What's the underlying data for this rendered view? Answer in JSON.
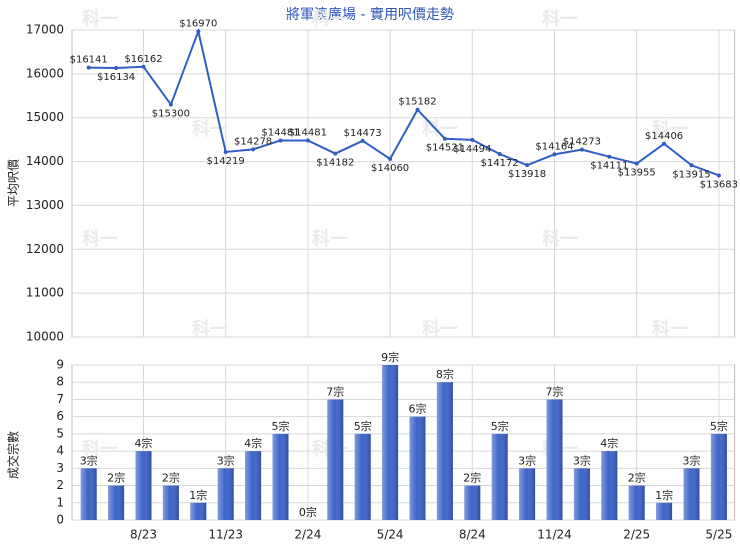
{
  "chart_data": [
    {
      "type": "line",
      "title": "將軍澳廣場 - 實用呎價走勢",
      "ylabel": "平均呎價",
      "watermark": "科一",
      "values": [
        16141,
        16134,
        16162,
        15300,
        16970,
        14219,
        14278,
        14481,
        14481,
        14182,
        14473,
        14060,
        15182,
        14521,
        14494,
        14172,
        13918,
        14164,
        14273,
        14111,
        13955,
        14406,
        13915,
        13683
      ],
      "value_labels": [
        "$16141",
        "$16134",
        "$16162",
        "$15300",
        "$16970",
        "$14219",
        "$14278",
        "$14481",
        "$14481",
        "$14182",
        "$14473",
        "$14060",
        "$15182",
        "$14521",
        "$14494",
        "$14172",
        "$13918",
        "$14164",
        "$14273",
        "$14111",
        "$13955",
        "$14406",
        "$13915",
        "$13683"
      ],
      "color": "#2f5fc4",
      "ylim": [
        10000,
        17000
      ],
      "yticks": [
        10000,
        11000,
        12000,
        13000,
        14000,
        15000,
        16000,
        17000
      ],
      "grid": true
    },
    {
      "type": "bar",
      "ylabel": "成交宗數",
      "categories": [
        null,
        null,
        "8/23",
        null,
        null,
        "11/23",
        null,
        null,
        "2/24",
        null,
        null,
        "5/24",
        null,
        null,
        "8/24",
        null,
        null,
        "11/24",
        null,
        null,
        "2/25",
        null,
        null,
        "5/25"
      ],
      "values": [
        3,
        2,
        4,
        2,
        1,
        3,
        4,
        5,
        0,
        7,
        5,
        9,
        6,
        8,
        2,
        5,
        3,
        7,
        3,
        4,
        2,
        1,
        3,
        5
      ],
      "value_labels": [
        "3宗",
        "2宗",
        "4宗",
        "2宗",
        "1宗",
        "3宗",
        "4宗",
        "5宗",
        "0宗",
        "7宗",
        "5宗",
        "9宗",
        "6宗",
        "8宗",
        "2宗",
        "5宗",
        "3宗",
        "7宗",
        "3宗",
        "4宗",
        "2宗",
        "1宗",
        "3宗",
        "5宗"
      ],
      "color": "#3d64c8",
      "ylim": [
        0,
        9
      ],
      "yticks": [
        0,
        1,
        2,
        3,
        4,
        5,
        6,
        7,
        8,
        9
      ],
      "grid": true
    }
  ]
}
